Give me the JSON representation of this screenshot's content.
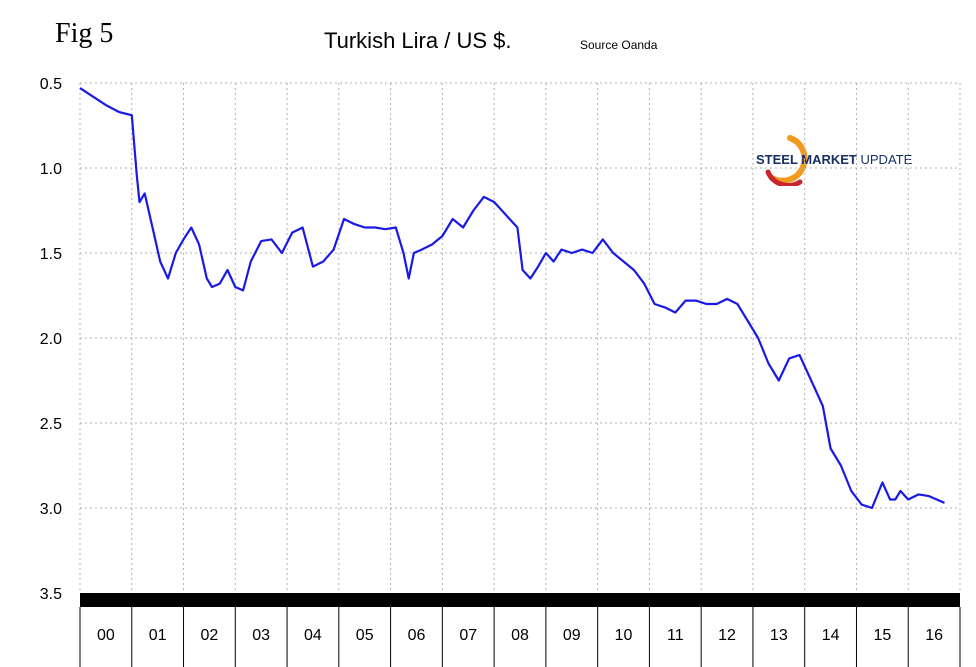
{
  "figure_label": "Fig 5",
  "source": "Source Oanda",
  "logo": {
    "name": "steel-market-update-logo",
    "text_bold": "STEEL MARKET",
    "text_light": " UPDATE",
    "colors": {
      "swoosh_red": "#c8262c",
      "swoosh_orange": "#f39a1e",
      "text": "#1a2e66"
    }
  },
  "colors": {
    "line": "#1a1ae6",
    "grid": "#b0b0b0",
    "axis_band": "#000000"
  },
  "chart_data": {
    "type": "line",
    "title": "Turkish Lira / US $.",
    "xlabel": "",
    "ylabel": "",
    "y_inverted": true,
    "ylim": [
      0.5,
      3.5
    ],
    "y_ticks": [
      0.5,
      1.0,
      1.5,
      2.0,
      2.5,
      3.0,
      3.5
    ],
    "y_tick_labels": [
      "0.5",
      "1.0",
      "1.5",
      "2.0",
      "2.5",
      "3.0",
      "3.5"
    ],
    "xlim": [
      2000,
      2017
    ],
    "x_tick_labels": [
      "00",
      "01",
      "02",
      "03",
      "04",
      "05",
      "06",
      "07",
      "08",
      "09",
      "10",
      "11",
      "12",
      "13",
      "14",
      "15",
      "16"
    ],
    "grid": {
      "vertical": true,
      "horizontal": true,
      "style": "dotted"
    },
    "series": [
      {
        "x": [
          2000.0,
          2000.25,
          2000.5,
          2000.75,
          2001.0,
          2001.1,
          2001.15,
          2001.25,
          2001.4,
          2001.55,
          2001.7,
          2001.85,
          2002.0,
          2002.15,
          2002.3,
          2002.45,
          2002.55,
          2002.7,
          2002.85,
          2003.0,
          2003.15,
          2003.3,
          2003.5,
          2003.7,
          2003.9,
          2004.1,
          2004.3,
          2004.5,
          2004.7,
          2004.9,
          2005.1,
          2005.3,
          2005.5,
          2005.7,
          2005.9,
          2006.1,
          2006.25,
          2006.35,
          2006.45,
          2006.6,
          2006.8,
          2007.0,
          2007.2,
          2007.4,
          2007.6,
          2007.8,
          2008.0,
          2008.15,
          2008.3,
          2008.45,
          2008.55,
          2008.7,
          2008.85,
          2009.0,
          2009.15,
          2009.3,
          2009.5,
          2009.7,
          2009.9,
          2010.1,
          2010.3,
          2010.5,
          2010.7,
          2010.9,
          2011.1,
          2011.3,
          2011.5,
          2011.7,
          2011.9,
          2012.1,
          2012.3,
          2012.5,
          2012.7,
          2012.9,
          2013.1,
          2013.3,
          2013.5,
          2013.7,
          2013.9,
          2014.05,
          2014.2,
          2014.35,
          2014.5,
          2014.7,
          2014.9,
          2015.1,
          2015.3,
          2015.5,
          2015.65,
          2015.75,
          2015.85,
          2016.0,
          2016.2,
          2016.4,
          2016.55,
          2016.7
        ],
        "y": [
          0.53,
          0.58,
          0.63,
          0.67,
          0.69,
          1.05,
          1.2,
          1.15,
          1.35,
          1.55,
          1.65,
          1.5,
          1.42,
          1.35,
          1.45,
          1.65,
          1.7,
          1.68,
          1.6,
          1.7,
          1.72,
          1.55,
          1.43,
          1.42,
          1.5,
          1.38,
          1.35,
          1.58,
          1.55,
          1.48,
          1.3,
          1.33,
          1.35,
          1.35,
          1.36,
          1.35,
          1.5,
          1.65,
          1.5,
          1.48,
          1.45,
          1.4,
          1.3,
          1.35,
          1.25,
          1.17,
          1.2,
          1.25,
          1.3,
          1.35,
          1.6,
          1.65,
          1.58,
          1.5,
          1.55,
          1.48,
          1.5,
          1.48,
          1.5,
          1.42,
          1.5,
          1.55,
          1.6,
          1.68,
          1.8,
          1.82,
          1.85,
          1.78,
          1.78,
          1.8,
          1.8,
          1.77,
          1.8,
          1.9,
          2.0,
          2.15,
          2.25,
          2.12,
          2.1,
          2.2,
          2.3,
          2.4,
          2.65,
          2.75,
          2.9,
          2.98,
          3.0,
          2.85,
          2.95,
          2.95,
          2.9,
          2.95,
          2.92,
          2.93,
          2.95,
          2.97
        ]
      }
    ]
  }
}
